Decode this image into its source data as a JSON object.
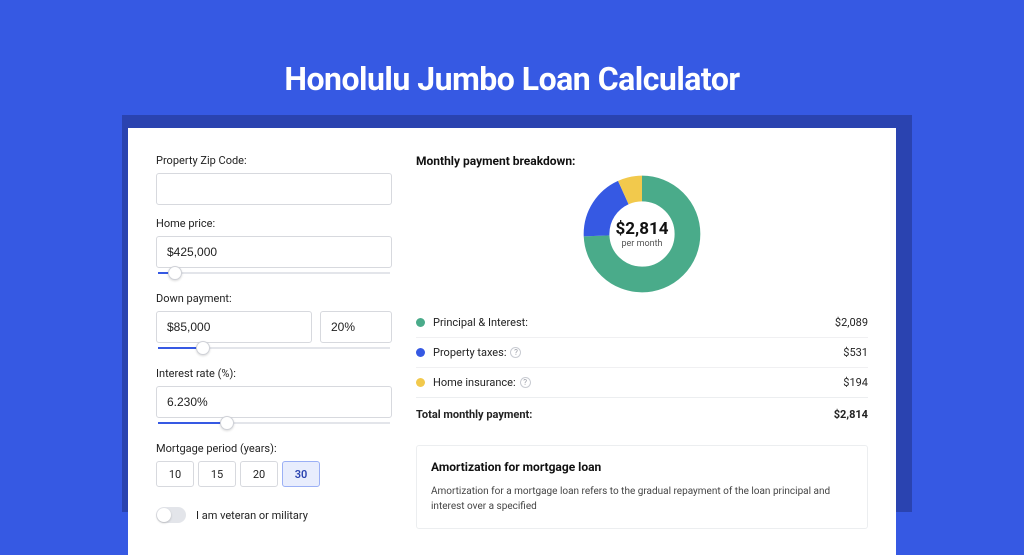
{
  "page_title": "Honolulu Jumbo Loan Calculator",
  "colors": {
    "page_bg": "#3659e3",
    "shadow": "#2a43b0",
    "card_bg": "#ffffff",
    "accent": "#3659e3",
    "slice_principal": "#4aab8a",
    "slice_taxes": "#3659e3",
    "slice_insurance": "#f2c94c"
  },
  "form": {
    "zip_label": "Property Zip Code:",
    "zip_value": "",
    "home_price_label": "Home price:",
    "home_price_value": "$425,000",
    "home_price_slider_pct": 8,
    "down_payment_label": "Down payment:",
    "down_payment_value": "$85,000",
    "down_payment_pct_value": "20%",
    "down_payment_slider_pct": 20,
    "interest_label": "Interest rate (%):",
    "interest_value": "6.230%",
    "interest_slider_pct": 30,
    "period_label": "Mortgage period (years):",
    "periods": [
      "10",
      "15",
      "20",
      "30"
    ],
    "period_active_index": 3,
    "veteran_label": "I am veteran or military",
    "veteran_on": false
  },
  "breakdown": {
    "title": "Monthly payment breakdown:",
    "donut": {
      "amount": "$2,814",
      "subtext": "per month",
      "slices": [
        {
          "color_key": "slice_principal",
          "pct": 74.2
        },
        {
          "color_key": "slice_taxes",
          "pct": 18.9
        },
        {
          "color_key": "slice_insurance",
          "pct": 6.9
        }
      ]
    },
    "rows": [
      {
        "color_key": "slice_principal",
        "label": "Principal & Interest:",
        "info": false,
        "value": "$2,089"
      },
      {
        "color_key": "slice_taxes",
        "label": "Property taxes:",
        "info": true,
        "value": "$531"
      },
      {
        "color_key": "slice_insurance",
        "label": "Home insurance:",
        "info": true,
        "value": "$194"
      }
    ],
    "total_label": "Total monthly payment:",
    "total_value": "$2,814"
  },
  "amortization": {
    "title": "Amortization for mortgage loan",
    "text": "Amortization for a mortgage loan refers to the gradual repayment of the loan principal and interest over a specified"
  }
}
